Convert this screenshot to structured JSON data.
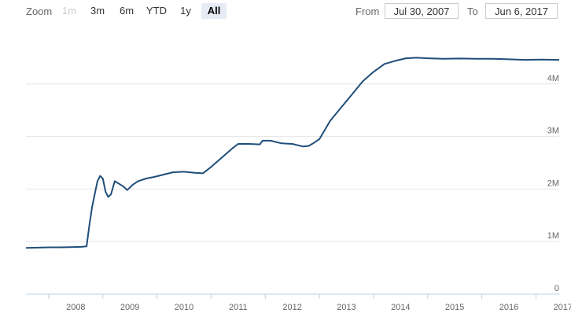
{
  "toolbar": {
    "zoom_label": "Zoom",
    "zoom_buttons": [
      "1m",
      "3m",
      "6m",
      "YTD",
      "1y",
      "All"
    ],
    "selected": "All",
    "from_label": "From",
    "from_value": "Jul 30, 2007",
    "to_label": "To",
    "to_value": "Jun 6, 2017"
  },
  "colors": {
    "line": "#1f4e79",
    "grid": "#e6e6e6",
    "selected_button": "#e6ebf5"
  },
  "chart_data": {
    "type": "line",
    "title": "",
    "xlabel": "",
    "ylabel": "",
    "xlim": [
      2007.58,
      2017.43
    ],
    "ylim": [
      0,
      5000000
    ],
    "grid": true,
    "x_ticks": [
      "2008",
      "2009",
      "2010",
      "2011",
      "2012",
      "2013",
      "2014",
      "2015",
      "2016",
      "2017"
    ],
    "y_ticks": [
      "0",
      "1M",
      "2M",
      "3M",
      "4M"
    ],
    "series": [
      {
        "values": [
          [
            2007.58,
            880000
          ],
          [
            2007.8,
            885000
          ],
          [
            2008.0,
            890000
          ],
          [
            2008.2,
            890000
          ],
          [
            2008.4,
            895000
          ],
          [
            2008.6,
            900000
          ],
          [
            2008.7,
            910000
          ],
          [
            2008.75,
            1300000
          ],
          [
            2008.8,
            1650000
          ],
          [
            2008.85,
            1900000
          ],
          [
            2008.9,
            2150000
          ],
          [
            2008.95,
            2250000
          ],
          [
            2009.0,
            2200000
          ],
          [
            2009.05,
            1950000
          ],
          [
            2009.1,
            1850000
          ],
          [
            2009.15,
            1900000
          ],
          [
            2009.22,
            2150000
          ],
          [
            2009.3,
            2100000
          ],
          [
            2009.38,
            2050000
          ],
          [
            2009.45,
            1980000
          ],
          [
            2009.55,
            2080000
          ],
          [
            2009.65,
            2150000
          ],
          [
            2009.8,
            2200000
          ],
          [
            2009.95,
            2230000
          ],
          [
            2010.1,
            2270000
          ],
          [
            2010.3,
            2320000
          ],
          [
            2010.5,
            2330000
          ],
          [
            2010.7,
            2310000
          ],
          [
            2010.85,
            2300000
          ],
          [
            2011.0,
            2420000
          ],
          [
            2011.2,
            2600000
          ],
          [
            2011.4,
            2780000
          ],
          [
            2011.5,
            2860000
          ],
          [
            2011.7,
            2860000
          ],
          [
            2011.9,
            2850000
          ],
          [
            2011.95,
            2920000
          ],
          [
            2012.1,
            2920000
          ],
          [
            2012.3,
            2870000
          ],
          [
            2012.5,
            2860000
          ],
          [
            2012.7,
            2810000
          ],
          [
            2012.8,
            2820000
          ],
          [
            2012.9,
            2880000
          ],
          [
            2013.0,
            2950000
          ],
          [
            2013.2,
            3300000
          ],
          [
            2013.4,
            3550000
          ],
          [
            2013.6,
            3800000
          ],
          [
            2013.8,
            4050000
          ],
          [
            2014.0,
            4230000
          ],
          [
            2014.2,
            4380000
          ],
          [
            2014.4,
            4440000
          ],
          [
            2014.6,
            4490000
          ],
          [
            2014.8,
            4500000
          ],
          [
            2015.0,
            4490000
          ],
          [
            2015.3,
            4480000
          ],
          [
            2015.6,
            4485000
          ],
          [
            2015.9,
            4480000
          ],
          [
            2016.2,
            4480000
          ],
          [
            2016.5,
            4470000
          ],
          [
            2016.8,
            4460000
          ],
          [
            2017.1,
            4465000
          ],
          [
            2017.43,
            4460000
          ]
        ]
      }
    ]
  }
}
